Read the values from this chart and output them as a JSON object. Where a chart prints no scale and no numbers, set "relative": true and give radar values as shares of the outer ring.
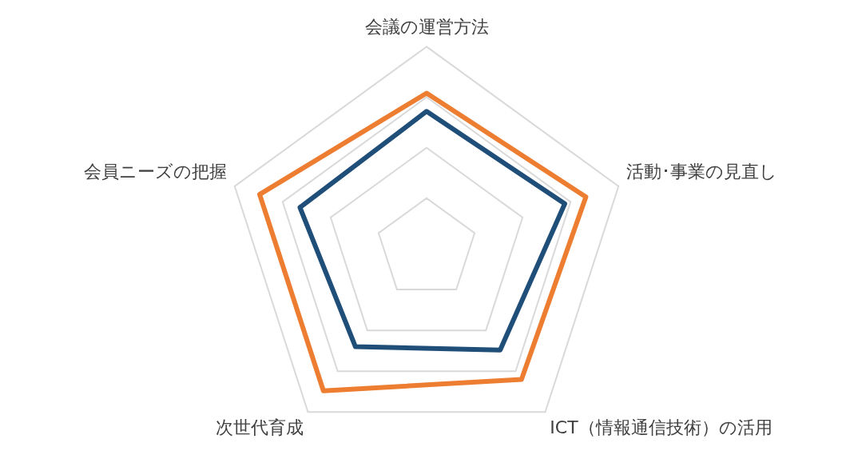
{
  "chart_data": {
    "type": "radar",
    "relative": true,
    "legend": false,
    "marker": "none",
    "categories": [
      "会議の運営方法",
      "活動･事業の見直し",
      "ICT（情報通信技術）の活用",
      "次世代育成",
      "会員ニーズの把握"
    ],
    "series": [
      {
        "color": "#ed7d31",
        "values": [
          0.77,
          0.83,
          0.8,
          0.87,
          0.87
        ]
      },
      {
        "color": "#1f4e79",
        "values": [
          0.68,
          0.72,
          0.62,
          0.6,
          0.66
        ]
      }
    ]
  }
}
